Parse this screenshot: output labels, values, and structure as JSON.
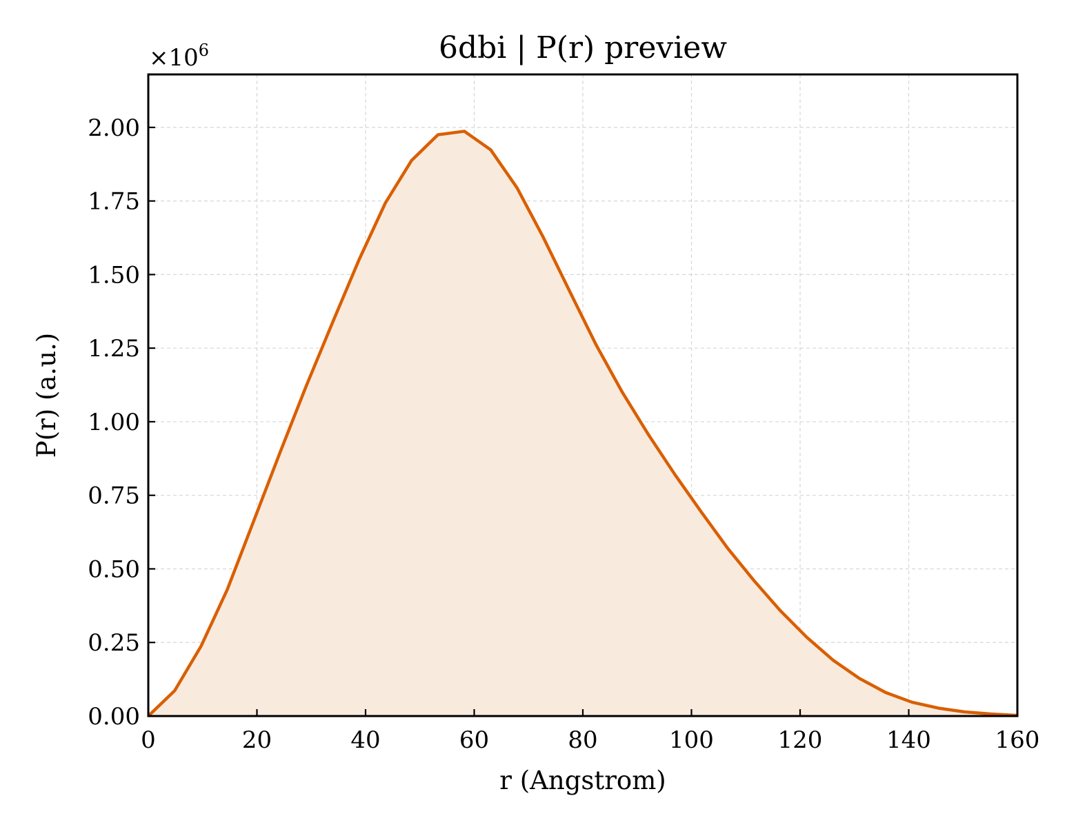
{
  "chart_data": {
    "type": "area",
    "title": "6dbi | P(r) preview",
    "xlabel": "r (Angstrom)",
    "ylabel": "P(r) (a.u.)",
    "y_offset_text": "×10",
    "y_offset_exponent": "6",
    "xlim": [
      0,
      160
    ],
    "ylim": [
      0,
      2.18
    ],
    "y_multiplier": 1000000,
    "grid": true,
    "x_ticks": [
      0,
      20,
      40,
      60,
      80,
      100,
      120,
      140,
      160
    ],
    "x_tick_labels": [
      "0",
      "20",
      "40",
      "60",
      "80",
      "100",
      "120",
      "140",
      "160"
    ],
    "y_ticks": [
      0,
      0.25,
      0.5,
      0.75,
      1.0,
      1.25,
      1.5,
      1.75,
      2.0
    ],
    "y_tick_labels": [
      "0.00",
      "0.25",
      "0.50",
      "0.75",
      "1.00",
      "1.25",
      "1.50",
      "1.75",
      "2.00"
    ],
    "series": [
      {
        "color": "#d95f02",
        "fill_color": "#f9eade",
        "x": [
          0,
          4.85,
          9.7,
          14.55,
          19.39,
          24.24,
          29.09,
          33.94,
          38.79,
          43.64,
          48.48,
          53.33,
          58.18,
          63.03,
          67.88,
          72.73,
          77.58,
          82.42,
          87.27,
          92.12,
          96.97,
          101.82,
          106.67,
          111.52,
          116.36,
          121.21,
          126.06,
          130.91,
          135.76,
          140.61,
          145.45,
          150.3,
          155.15,
          160
        ],
        "y": [
          0,
          0.086,
          0.237,
          0.43,
          0.662,
          0.895,
          1.122,
          1.338,
          1.55,
          1.743,
          1.888,
          1.975,
          1.987,
          1.924,
          1.795,
          1.626,
          1.443,
          1.262,
          1.1,
          0.955,
          0.82,
          0.693,
          0.57,
          0.46,
          0.358,
          0.268,
          0.19,
          0.128,
          0.08,
          0.047,
          0.027,
          0.014,
          0.007,
          0.002
        ]
      }
    ]
  }
}
